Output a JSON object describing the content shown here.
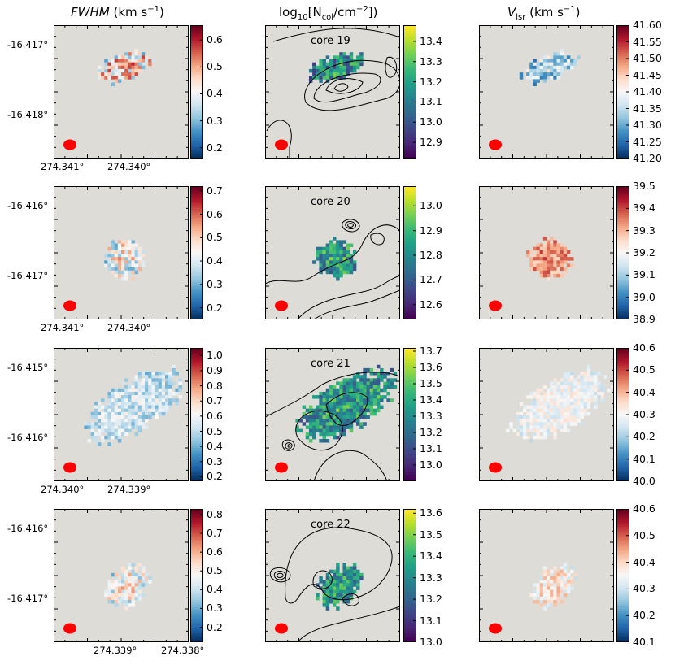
{
  "headers": {
    "fwhm_name": "FWHM",
    "fwhm_unit": "(km s",
    "fwhm_exp": "−1",
    "fwhm_close": ")",
    "ncol_prefix": "log",
    "ncol_sub10": "10",
    "ncol_open": "[N",
    "ncol_sub": "col",
    "ncol_unit": "/cm",
    "ncol_exp": "−2",
    "ncol_close": "])",
    "vlsr_name": "V",
    "vlsr_sub": "lsr",
    "vlsr_unit": "(km s",
    "vlsr_exp": "−1",
    "vlsr_close": ")"
  },
  "colors": {
    "background": "#dddcd7",
    "beam": "#ff0000",
    "contour": "#000000",
    "rdbu": [
      "#053061",
      "#2166ac",
      "#4393c3",
      "#92c5de",
      "#d1e5f0",
      "#f7f7f7",
      "#fddbc7",
      "#f4a582",
      "#d6604d",
      "#b2182b",
      "#67001f"
    ],
    "viridis": [
      "#440154",
      "#482878",
      "#3e4989",
      "#31688e",
      "#26828e",
      "#1f9e89",
      "#35b779",
      "#6ece58",
      "#b5de2b",
      "#fde725"
    ]
  },
  "chart_data": [
    {
      "core": "core 19",
      "dec_ticks": [
        "-16.417°",
        "-16.418°"
      ],
      "ra_ticks": [
        "274.341°",
        "274.340°"
      ],
      "fwhm": {
        "type": "heatmap",
        "ticks": [
          "0.6",
          "0.5",
          "0.4",
          "0.3",
          "0.2"
        ],
        "vmin": 0.16,
        "vmax": 0.655,
        "mean": 0.42,
        "spread": 0.15
      },
      "ncol": {
        "type": "heatmap",
        "ticks": [
          "13.4",
          "13.3",
          "13.2",
          "13.1",
          "13.0",
          "12.9"
        ],
        "vmin": 12.82,
        "vmax": 13.48,
        "mean": 13.1,
        "spread": 0.2
      },
      "vlsr": {
        "type": "heatmap",
        "ticks": [
          "41.60",
          "41.55",
          "41.50",
          "41.45",
          "41.40",
          "41.35",
          "41.30",
          "41.25",
          "41.20"
        ],
        "vmin": 41.2,
        "vmax": 41.6,
        "mean": 41.33,
        "spread": 0.08
      }
    },
    {
      "core": "core 20",
      "dec_ticks": [
        "-16.416°",
        "-16.417°"
      ],
      "ra_ticks": [
        "274.341°",
        "274.340°"
      ],
      "fwhm": {
        "type": "heatmap",
        "ticks": [
          "0.7",
          "0.6",
          "0.5",
          "0.4",
          "0.3",
          "0.2"
        ],
        "vmin": 0.15,
        "vmax": 0.72,
        "mean": 0.4,
        "spread": 0.14
      },
      "ncol": {
        "type": "heatmap",
        "ticks": [
          "13.0",
          "12.9",
          "12.8",
          "12.7",
          "12.6"
        ],
        "vmin": 12.54,
        "vmax": 13.08,
        "mean": 12.8,
        "spread": 0.15
      },
      "vlsr": {
        "type": "heatmap",
        "ticks": [
          "39.5",
          "39.4",
          "39.3",
          "39.2",
          "39.1",
          "39.0",
          "38.9"
        ],
        "vmin": 38.9,
        "vmax": 39.5,
        "mean": 39.32,
        "spread": 0.08
      }
    },
    {
      "core": "core 21",
      "dec_ticks": [
        "-16.415°",
        "-16.416°"
      ],
      "ra_ticks": [
        "274.340°",
        "274.339°"
      ],
      "fwhm": {
        "type": "heatmap",
        "ticks": [
          "1.0",
          "0.9",
          "0.8",
          "0.7",
          "0.6",
          "0.5",
          "0.4",
          "0.3",
          "0.2"
        ],
        "vmin": 0.17,
        "vmax": 1.05,
        "mean": 0.5,
        "spread": 0.12
      },
      "ncol": {
        "type": "heatmap",
        "ticks": [
          "13.7",
          "13.6",
          "13.5",
          "13.4",
          "13.3",
          "13.2",
          "13.1",
          "13.0"
        ],
        "vmin": 12.9,
        "vmax": 13.72,
        "mean": 13.3,
        "spread": 0.22
      },
      "vlsr": {
        "type": "heatmap",
        "ticks": [
          "40.6",
          "40.5",
          "40.4",
          "40.3",
          "40.2",
          "40.1",
          "40.0"
        ],
        "vmin": 40.0,
        "vmax": 40.6,
        "mean": 40.28,
        "spread": 0.06
      }
    },
    {
      "core": "core 22",
      "dec_ticks": [
        "-16.416°",
        "-16.417°"
      ],
      "ra_ticks": [
        "274.339°",
        "274.338°"
      ],
      "fwhm": {
        "type": "heatmap",
        "ticks": [
          "0.8",
          "0.7",
          "0.6",
          "0.5",
          "0.4",
          "0.3",
          "0.2"
        ],
        "vmin": 0.12,
        "vmax": 0.83,
        "mean": 0.45,
        "spread": 0.15
      },
      "ncol": {
        "type": "heatmap",
        "ticks": [
          "13.6",
          "13.5",
          "13.4",
          "13.3",
          "13.2",
          "13.1",
          "13.0"
        ],
        "vmin": 13.0,
        "vmax": 13.62,
        "mean": 13.3,
        "spread": 0.15
      },
      "vlsr": {
        "type": "heatmap",
        "ticks": [
          "40.6",
          "40.5",
          "40.4",
          "40.3",
          "40.2",
          "40.1"
        ],
        "vmin": 40.1,
        "vmax": 40.6,
        "mean": 40.36,
        "spread": 0.07
      }
    }
  ]
}
